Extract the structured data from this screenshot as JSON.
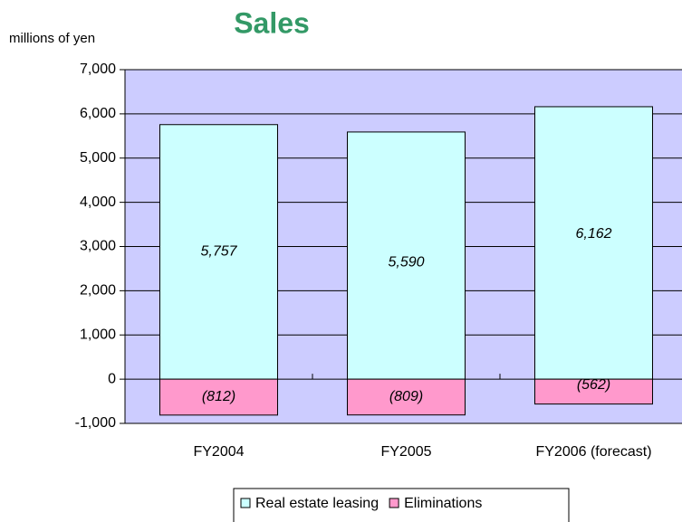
{
  "chart_data": {
    "type": "bar",
    "stacked": true,
    "title": "Sales",
    "y_label": "millions of yen",
    "categories": [
      "FY2004",
      "FY2005",
      "FY2006 (forecast)"
    ],
    "series": [
      {
        "name": "Real estate leasing",
        "color": "#ccffff",
        "values": [
          5757,
          5590,
          6162
        ],
        "value_labels": [
          "5,757",
          "5,590",
          "6,162"
        ]
      },
      {
        "name": "Eliminations",
        "color": "#ff99cc",
        "values": [
          -812,
          -809,
          -562
        ],
        "value_labels": [
          "(812)",
          "(809)",
          "(562)"
        ]
      }
    ],
    "ylim": [
      -1000,
      7000
    ],
    "yticks": [
      {
        "value": -1000,
        "label": "-1,000"
      },
      0,
      {
        "value": 1000,
        "label": "1,000"
      },
      {
        "value": 2000,
        "label": "2,000"
      },
      {
        "value": 3000,
        "label": "3,000"
      },
      {
        "value": 4000,
        "label": "4,000"
      },
      {
        "value": 5000,
        "label": "5,000"
      },
      {
        "value": 6000,
        "label": "6,000"
      },
      {
        "value": 7000,
        "label": "7,000"
      }
    ],
    "grid": true,
    "plot_background": "#ccccff",
    "title_color": "#339966",
    "legend": "bottom"
  }
}
